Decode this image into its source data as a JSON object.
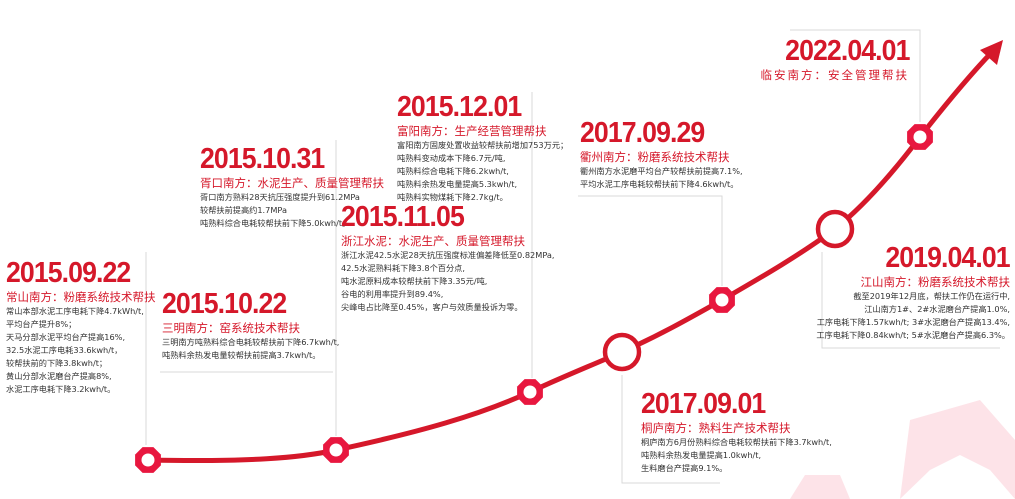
{
  "colors": {
    "accent": "#d5182a",
    "node": "#e8173f",
    "connector": "#d9d9d9",
    "watermark": "#fde3e8"
  },
  "events": [
    {
      "date": "2015.09.22",
      "title": "常山南方：粉磨系统技术帮扶",
      "lines": [
        "常山本部水泥工序电耗下降4.7kWh/t,",
        "平均台产提升8%；",
        "天马分部水泥平均台产提高16%,",
        "32.5水泥工序电耗33.6kwh/t，",
        "较帮扶前的下降3.8kwh/t；",
        "黄山分部水泥磨台产提高8%,",
        "水泥工序电耗下降3.2kwh/t。"
      ],
      "node": "gear"
    },
    {
      "date": "2015.10.22",
      "title": "三明南方：窑系统技术帮扶",
      "lines": [
        "三明南方吨熟料综合电耗较帮扶前下降6.7kwh/t,",
        "吨熟料余热发电量较帮扶前提高3.7kwh/t。"
      ],
      "node": "gear"
    },
    {
      "date": "2015.10.31",
      "title": "胥口南方：水泥生产、质量管理帮扶",
      "lines": [
        "胥口南方熟料28天抗压强度提升到61.2MPa",
        "较帮扶前提高约1.7MPa",
        "吨熟料综合电耗较帮扶前下降5.0kwh/t。"
      ],
      "node": "none"
    },
    {
      "date": "2015.11.05",
      "title": "浙江水泥：水泥生产、质量管理帮扶",
      "lines": [
        "浙江水泥42.5水泥28天抗压强度标准偏差降低至0.82MPa,",
        "42.5水泥熟料耗下降3.8个百分点,",
        "吨水泥原料成本较帮扶前下降3.35元/吨,",
        "谷电的利用率提升到89.4%,",
        "尖峰电占比降至0.45%，客户与效质量投诉为零。"
      ],
      "node": "gear"
    },
    {
      "date": "2015.12.01",
      "title": "富阳南方：生产经营管理帮扶",
      "lines": [
        "富阳南方固废处置收益较帮扶前增加753万元；",
        "吨熟料变动成本下降6.7元/吨,",
        "吨熟料综合电耗下降6.2kwh/t,",
        "吨熟料余热发电量提高5.3kwh/t,",
        "吨熟料实物煤耗下降2.7kg/t。"
      ],
      "node": "none"
    },
    {
      "date": "2017.09.01",
      "title": "桐庐南方：熟料生产技术帮扶",
      "lines": [
        "桐庐南方6月份熟料综合电耗较帮扶前下降3.7kwh/t,",
        "吨熟料余热发电量提高1.0kwh/t,",
        "生料磨台产提高9.1%。"
      ],
      "node": "circle"
    },
    {
      "date": "2017.09.29",
      "title": "衢州南方：粉磨系统技术帮扶",
      "lines": [
        "衢州南方水泥磨平均台产较帮扶前提高7.1%,",
        "平均水泥工序电耗较帮扶前下降4.6kwh/t。"
      ],
      "node": "gear"
    },
    {
      "date": "2019.04.01",
      "title": "江山南方：粉磨系统技术帮扶",
      "lines": [
        "截至2019年12月底，帮扶工作仍在运行中,",
        "江山南方1#、2#水泥磨台产提高1.0%,",
        "工序电耗下降1.57kwh/t; 3#水泥磨台产提高13.4%,",
        "工序电耗下降0.84kwh/t; 5#水泥磨台产提高6.3%。"
      ],
      "node": "circle"
    },
    {
      "date": "2022.04.01",
      "title": "临安南方：安全管理帮扶",
      "lines": [],
      "node": "gear"
    }
  ]
}
